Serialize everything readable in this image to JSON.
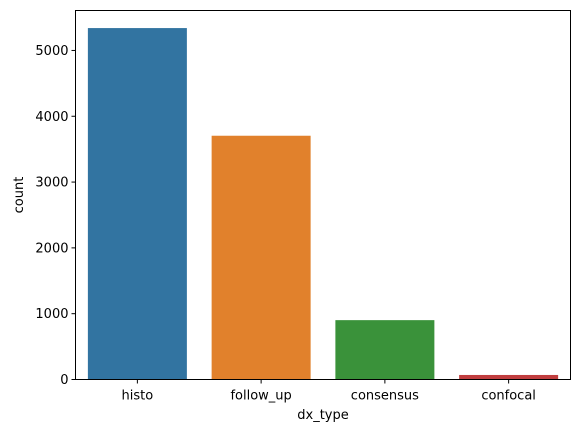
{
  "chart_data": {
    "type": "bar",
    "title": "",
    "xlabel": "dx_type",
    "ylabel": "count",
    "categories": [
      "histo",
      "follow_up",
      "consensus",
      "confocal"
    ],
    "values": [
      5340,
      3704,
      902,
      69
    ],
    "colors": [
      "#3274a1",
      "#e1812c",
      "#3a923a",
      "#c03d3e"
    ],
    "ylim": [
      0,
      5607
    ],
    "yticks": [
      0,
      1000,
      2000,
      3000,
      4000,
      5000
    ],
    "grid": false,
    "legend": "none"
  }
}
